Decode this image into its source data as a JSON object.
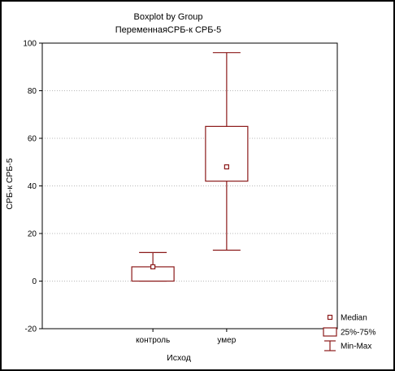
{
  "colors": {
    "box": "#8b1a1a",
    "grid": "#b8b8b8",
    "axis": "#000000",
    "background": "#ffffff"
  },
  "chart_data": {
    "type": "boxplot",
    "title": "Boxplot by Group",
    "subtitle": "ПеременнаяСРБ-к СРБ-5",
    "xlabel": "Исход",
    "ylabel": "СРБ-к СРБ-5",
    "ylim": [
      -20,
      100
    ],
    "yticks": [
      -20,
      0,
      20,
      40,
      60,
      80,
      100
    ],
    "grid": true,
    "legend_position": "bottom-right",
    "legend": [
      {
        "symbol": "median-point",
        "label": "Median"
      },
      {
        "symbol": "box",
        "label": "25%-75%"
      },
      {
        "symbol": "whisker",
        "label": "Min-Max"
      }
    ],
    "groups": [
      {
        "category": "контроль",
        "min": 0,
        "q1": 0,
        "median": 6,
        "q3": 6,
        "max": 12
      },
      {
        "category": "умер",
        "min": 13,
        "q1": 42,
        "median": 48,
        "q3": 65,
        "max": 96
      }
    ]
  }
}
